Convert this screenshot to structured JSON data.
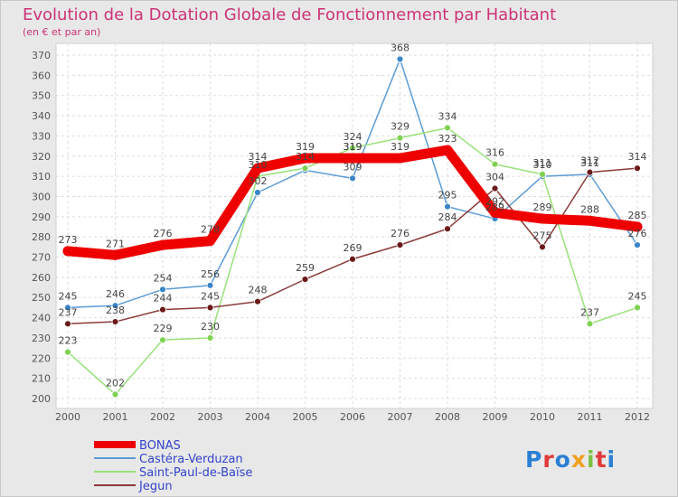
{
  "chart_data": {
    "type": "line",
    "title": "Evolution de la Dotation Globale de Fonctionnement par Habitant",
    "subtitle": "(en € et par an)",
    "xlabel": "",
    "ylabel": "",
    "x": [
      "2000",
      "2001",
      "2002",
      "2003",
      "2004",
      "2005",
      "2006",
      "2007",
      "2008",
      "2009",
      "2010",
      "2011",
      "2012"
    ],
    "ylim": [
      200,
      370
    ],
    "yticks": [
      "200",
      "210",
      "220",
      "230",
      "240",
      "250",
      "260",
      "270",
      "280",
      "290",
      "300",
      "310",
      "320",
      "330",
      "340",
      "350",
      "360",
      "370"
    ],
    "grid": true,
    "legend_position": "bottom-left",
    "series": [
      {
        "name": "Castéra-Verduzan",
        "color": "#5b9bd5",
        "marker": "#3a86c8",
        "values": [
          245,
          246,
          254,
          256,
          302,
          313,
          309,
          368,
          295,
          289,
          310,
          311,
          276
        ],
        "labels": [
          "245",
          "246",
          "254",
          "256",
          "302",
          "",
          "309",
          "368",
          "295",
          "289",
          "310",
          "311",
          "276"
        ]
      },
      {
        "name": "Saint-Paul-de-Baïse",
        "color": "#99e17a",
        "marker": "#7fd152",
        "values": [
          223,
          202,
          229,
          230,
          310,
          314,
          324,
          329,
          334,
          316,
          311,
          237,
          245
        ],
        "labels": [
          "223",
          "202",
          "229",
          "230",
          "310",
          "",
          "324",
          "329",
          "334",
          "316",
          "",
          "237",
          "245"
        ]
      },
      {
        "name": "Jegun",
        "color": "#8b3a3a",
        "marker": "#6b1a1a",
        "values": [
          237,
          238,
          244,
          245,
          248,
          259,
          269,
          276,
          284,
          304,
          275,
          312,
          314
        ],
        "labels": [
          "237",
          "238",
          "244",
          "245",
          "248",
          "259",
          "269",
          "276",
          "284",
          "304",
          "275",
          "312",
          "314"
        ]
      },
      {
        "name": "BONAS",
        "color": "#ee0000",
        "marker": "#ee0000",
        "values": [
          273,
          271,
          276,
          278,
          314,
          319,
          319,
          319,
          323,
          292,
          289,
          288,
          285
        ],
        "labels": [
          "273",
          "271",
          "276",
          "278",
          "314",
          "319",
          "319",
          "319",
          "323",
          "292",
          "289",
          "288",
          "285"
        ]
      }
    ],
    "extra_labels": [
      {
        "x": "2005",
        "y": "314"
      },
      {
        "x": "2006",
        "y": "319"
      },
      {
        "x": "2010",
        "y": "311"
      }
    ]
  },
  "legend_order": [
    3,
    0,
    1,
    2
  ],
  "logo": {
    "text": "Proxiti"
  }
}
